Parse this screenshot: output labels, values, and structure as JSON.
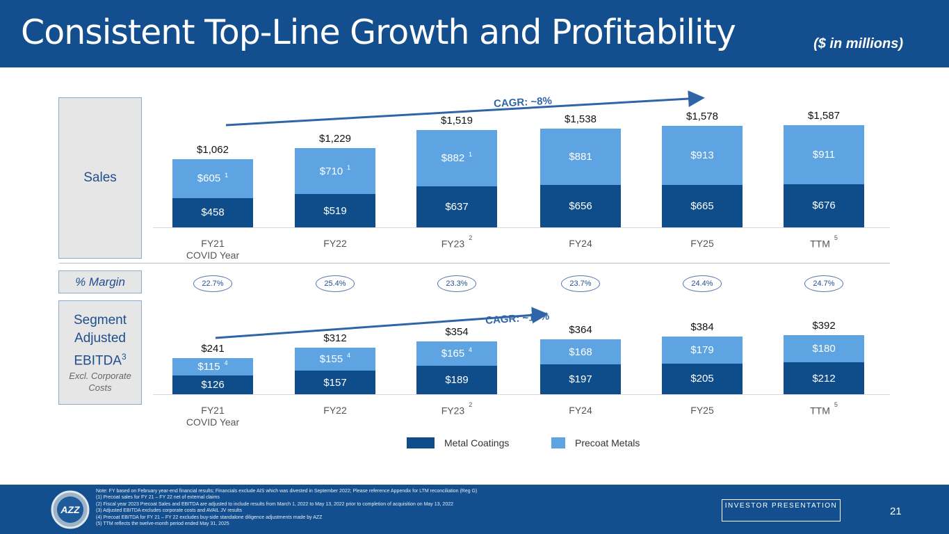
{
  "header": {
    "title": "Consistent Top-Line Growth and Profitability",
    "units": "($ in millions)"
  },
  "labels": {
    "sales": "Sales",
    "margin": "% Margin",
    "ebitda_line1": "Segment",
    "ebitda_line2": "Adjusted",
    "ebitda_line3": "EBITDA",
    "ebitda_sup": "3",
    "ebitda_sub": "Excl. Corporate Costs"
  },
  "colors": {
    "metal_coatings": "#0f4c8a",
    "precoat_metals": "#5ea3e2",
    "header": "#134f8e"
  },
  "chart_data": [
    {
      "type": "bar",
      "stacked": true,
      "title": "Sales",
      "categories": [
        "FY21",
        "FY22",
        "FY23",
        "FY24",
        "FY25",
        "TTM"
      ],
      "category_footnotes": [
        "",
        "",
        "2",
        "",
        "",
        "5"
      ],
      "category_sublabels": [
        "COVID Year",
        "",
        "",
        "",
        "",
        ""
      ],
      "series": [
        {
          "name": "Metal Coatings",
          "values": [
            458,
            519,
            637,
            656,
            665,
            676
          ],
          "labels": [
            "$458",
            "$519",
            "$637",
            "$656",
            "$665",
            "$676"
          ],
          "footnotes": [
            "",
            "",
            "",
            "",
            "",
            ""
          ]
        },
        {
          "name": "Precoat Metals",
          "values": [
            605,
            710,
            882,
            881,
            913,
            911
          ],
          "labels": [
            "$605",
            "$710",
            "$882",
            "$881",
            "$913",
            "$911"
          ],
          "footnotes": [
            "1",
            "1",
            "1",
            "",
            "",
            ""
          ]
        }
      ],
      "totals": [
        "$1,062",
        "$1,229",
        "$1,519",
        "$1,538",
        "$1,578",
        "$1,587"
      ],
      "annotation": "CAGR: ~8%"
    },
    {
      "type": "bar",
      "stacked": true,
      "title": "Segment Adjusted EBITDA",
      "categories": [
        "FY21",
        "FY22",
        "FY23",
        "FY24",
        "FY25",
        "TTM"
      ],
      "category_footnotes": [
        "",
        "",
        "2",
        "",
        "",
        "5"
      ],
      "category_sublabels": [
        "COVID Year",
        "",
        "",
        "",
        "",
        ""
      ],
      "series": [
        {
          "name": "Metal Coatings",
          "values": [
            126,
            157,
            189,
            197,
            205,
            212
          ],
          "labels": [
            "$126",
            "$157",
            "$189",
            "$197",
            "$205",
            "$212"
          ],
          "footnotes": [
            "",
            "",
            "",
            "",
            "",
            ""
          ]
        },
        {
          "name": "Precoat Metals",
          "values": [
            115,
            155,
            165,
            168,
            179,
            180
          ],
          "labels": [
            "$115",
            "$155",
            "$165",
            "$168",
            "$179",
            "$180"
          ],
          "footnotes": [
            "4",
            "4",
            "4",
            "",
            "",
            ""
          ]
        }
      ],
      "totals": [
        "$241",
        "$312",
        "$354",
        "$364",
        "$384",
        "$392"
      ],
      "annotation": "CAGR: ~10%"
    }
  ],
  "margins": [
    "22.7%",
    "25.4%",
    "23.3%",
    "23.7%",
    "24.4%",
    "24.7%"
  ],
  "legend": [
    "Metal Coatings",
    "Precoat Metals"
  ],
  "footer": {
    "notes": [
      "Note: FY based on February year-end financial results; Financials exclude AIS which was divested in September 2022; Please reference Appendix for LTM reconciliation (Reg G)",
      "(1)    Precoat sales for FY 21 – FY 22 net of external claims",
      "(2)    Fiscal year 2023 Precoat Sales and EBITDA are adjusted to include results from March 1, 2022 to May 13, 2022 prior to completion of acquisition on May 13, 2022",
      "(3)    Adjusted EBITDA excludes corporate costs and AVAIL JV results",
      "(4)    Precoat EBITDA for FY 21 – FY 22 excludes buy-side standalone diligence adjustments made by AZZ",
      "(5)    TTM reflects the twelve-month period ended May 31, 2025"
    ],
    "badge": "INVESTOR PRESENTATION",
    "page": "21",
    "logo_text": "AZZ"
  }
}
